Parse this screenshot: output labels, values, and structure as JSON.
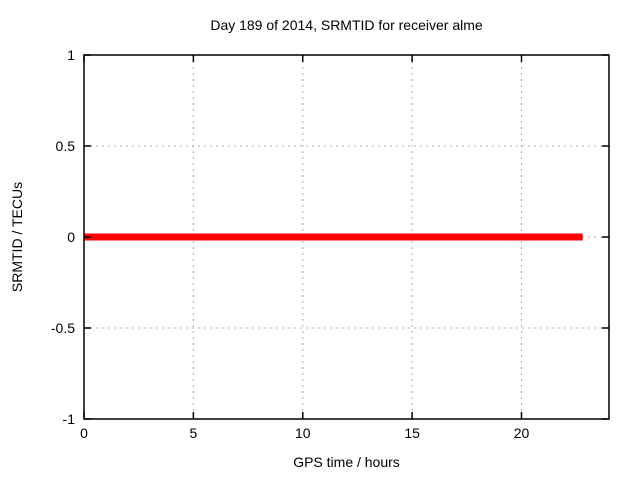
{
  "chart_data": {
    "type": "line",
    "title": "Day 189 of 2014, SRMTID for receiver alme",
    "xlabel": "GPS time / hours",
    "ylabel": "SRMTID / TECUs",
    "xlim": [
      0,
      24
    ],
    "ylim": [
      -1,
      1
    ],
    "xticks": {
      "values": [
        0,
        5,
        10,
        15,
        20
      ],
      "labels": [
        "0",
        "5",
        "10",
        "15",
        "20"
      ]
    },
    "yticks": {
      "values": [
        -1,
        -0.5,
        0,
        0.5,
        1
      ],
      "labels": [
        "-1",
        "-0.5",
        "0",
        "0.5",
        "1"
      ]
    },
    "grid": true,
    "legend": "none",
    "series": [
      {
        "name": "SRMTID",
        "color": "#ff0000",
        "line_width": 7,
        "x": [
          0,
          22.8
        ],
        "y": [
          0,
          0
        ]
      }
    ],
    "style": {
      "background": "#ffffff",
      "axis_color": "#000000",
      "grid_color": "#b0b0b0",
      "text_color": "#000000"
    }
  }
}
